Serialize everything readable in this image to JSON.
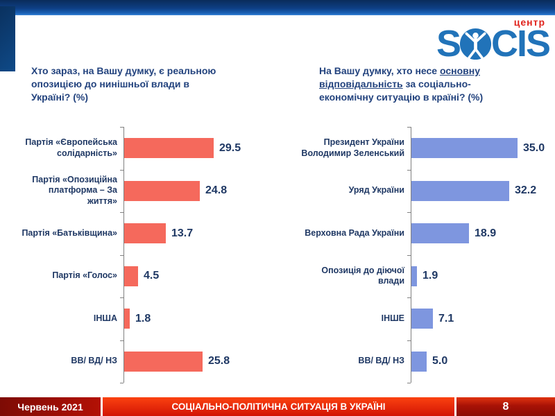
{
  "logo": {
    "brand_left": "S",
    "brand_right": "CIS",
    "center_label": "центр",
    "brand_color": "#2173B9",
    "center_color": "#E0231C",
    "figure_icon": "vitruvian-man-in-circle"
  },
  "chart_data": [
    {
      "type": "bar",
      "orientation": "horizontal",
      "title": "Хто зараз, на Вашу думку, є реальною опозицією до нинішньої влади в Україні? (%)",
      "title_lines": [
        [
          {
            "text": "Хто зараз, на Вашу думку, є реальною",
            "underline": false
          }
        ],
        [
          {
            "text": "опозицією до нинішньої влади в",
            "underline": false
          }
        ],
        [
          {
            "text": "Україні? (%)",
            "underline": false
          }
        ]
      ],
      "categories": [
        "Партія «Європейська солідарність»",
        "Партія «Опозиційна платформа – За життя»",
        "Партія «Батьківщина»",
        "Партія «Голос»",
        "ІНША",
        "ВВ/ ВД/ НЗ"
      ],
      "values": [
        29.5,
        24.8,
        13.7,
        4.5,
        1.8,
        25.8
      ],
      "bar_color": "#F5695C",
      "value_color": "#1F3864",
      "xlim": [
        0,
        40
      ],
      "grid": false,
      "legend": "none"
    },
    {
      "type": "bar",
      "orientation": "horizontal",
      "title": "На Вашу думку, хто несе основну відповідальність за соціально-економічну ситуацію в країні? (%)",
      "title_lines": [
        [
          {
            "text": "На Вашу думку, хто несе ",
            "underline": false
          },
          {
            "text": "основну",
            "underline": true
          }
        ],
        [
          {
            "text": "відповідальність",
            "underline": true
          },
          {
            "text": " за соціально-",
            "underline": false
          }
        ],
        [
          {
            "text": "економічну ситуацію в країні? (%)",
            "underline": false
          }
        ]
      ],
      "categories": [
        "Президент України Володимир Зеленський",
        "Уряд України",
        "Верховна Рада України",
        "Опозиція до діючої влади",
        "ІНШЕ",
        "ВВ/ ВД/ НЗ"
      ],
      "values": [
        35.0,
        32.2,
        18.9,
        1.9,
        7.1,
        5.0
      ],
      "bar_color": "#7E96DF",
      "value_color": "#1F3864",
      "xlim": [
        0,
        40
      ],
      "grid": false,
      "legend": "none"
    }
  ],
  "footer": {
    "date": "Червень 2021",
    "title": "СОЦІАЛЬНО-ПОЛІТИЧНА СИТУАЦІЯ В УКРАЇНІ",
    "page": "8"
  }
}
